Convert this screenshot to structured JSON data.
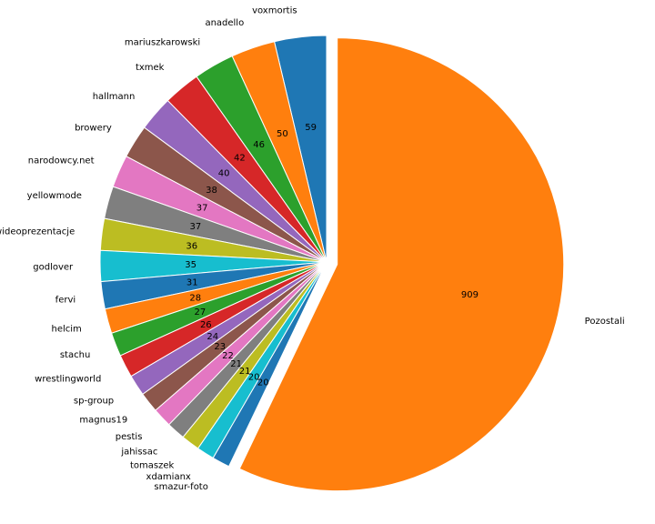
{
  "chart_data": {
    "type": "pie",
    "labels": [
      "voxmortis",
      "anadello",
      "mariuszkarowski",
      "txmek",
      "hallmann",
      "browery",
      "narodowcy.net",
      "yellowmode",
      "wideoprezentacje",
      "godlover",
      "fervi",
      "helcim",
      "stachu",
      "wrestlingworld",
      "sp-group",
      "magnus19",
      "pestis",
      "jahissac",
      "tomaszek",
      "xdamianx",
      "smazur-foto",
      "Pozostali"
    ],
    "values": [
      59,
      50,
      46,
      42,
      40,
      38,
      37,
      37,
      36,
      35,
      31,
      28,
      27,
      26,
      24,
      23,
      22,
      21,
      21,
      20,
      20,
      909
    ],
    "colors": [
      "#1f77b4",
      "#ff7f0e",
      "#2ca02c",
      "#d62728",
      "#9467bd",
      "#8c564b",
      "#e377c2",
      "#7f7f7f",
      "#bcbd22",
      "#17becf",
      "#1f77b4",
      "#ff7f0e",
      "#2ca02c",
      "#d62728",
      "#9467bd",
      "#8c564b",
      "#e377c2",
      "#7f7f7f",
      "#bcbd22",
      "#17becf",
      "#1f77b4",
      "#ff7f0e"
    ],
    "start_angle_deg": 90,
    "direction": "counterclockwise",
    "exploded": [
      "Pozostali"
    ]
  }
}
